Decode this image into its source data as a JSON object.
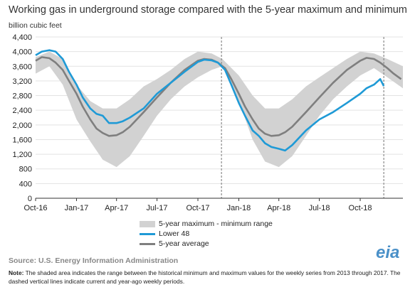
{
  "title": "Working gas in underground storage compared with the 5-year maximum and minimum",
  "units": "billion cubic feet",
  "source": "Source:  U.S. Energy Information Administration",
  "logo_text": "eia",
  "note_label": "Note:",
  "note_text": "The shaded area indicates the range between the historical minimum and maximum values for the weekly series from 2013 through 2017. The dashed vertical lines indicate current and year-ago weekly periods.",
  "colors": {
    "range": "#d2d2d2",
    "lower48": "#1f9ad6",
    "avg": "#7f7f7f"
  },
  "chart_data": {
    "type": "area",
    "ylim": [
      0,
      4400
    ],
    "yticks": [
      0,
      400,
      800,
      1200,
      1600,
      2000,
      2400,
      2800,
      3200,
      3600,
      4000,
      4400
    ],
    "ytick_labels": [
      "0",
      "400",
      "800",
      "1,200",
      "1,600",
      "2,000",
      "2,400",
      "2,800",
      "3,200",
      "3,600",
      "4,000",
      "4,400"
    ],
    "xlim": [
      "2016-10-01",
      "2019-01-05"
    ],
    "xticks": [
      "2016-10-01",
      "2017-01-01",
      "2017-04-01",
      "2017-07-01",
      "2017-10-01",
      "2018-01-01",
      "2018-04-01",
      "2018-07-01",
      "2018-10-01"
    ],
    "xtick_labels": [
      "Oct-16",
      "Jan-17",
      "Apr-17",
      "Jul-17",
      "Oct-17",
      "Jan-18",
      "Apr-18",
      "Jul-18",
      "Oct-18"
    ],
    "vlines": [
      "2017-11-23",
      "2018-11-23"
    ],
    "legend_position": "bottom",
    "series": [
      {
        "name": "5-year maximum - minimum range",
        "kind": "band",
        "x": [
          "2016-10-01",
          "2016-11-01",
          "2016-12-01",
          "2017-01-01",
          "2017-02-01",
          "2017-03-01",
          "2017-04-01",
          "2017-05-01",
          "2017-06-01",
          "2017-07-01",
          "2017-08-01",
          "2017-09-01",
          "2017-10-01",
          "2017-11-01",
          "2017-11-25",
          "2018-01-01",
          "2018-02-01",
          "2018-03-01",
          "2018-04-01",
          "2018-05-01",
          "2018-06-01",
          "2018-07-01",
          "2018-08-01",
          "2018-09-01",
          "2018-10-01",
          "2018-11-01",
          "2018-12-01",
          "2019-01-05"
        ],
        "upper": [
          3850,
          4000,
          3800,
          3100,
          2650,
          2450,
          2450,
          2700,
          3050,
          3250,
          3500,
          3800,
          4000,
          3950,
          3800,
          3350,
          2800,
          2450,
          2450,
          2700,
          3050,
          3300,
          3550,
          3800,
          4000,
          3950,
          3800,
          3600
        ],
        "lower": [
          3400,
          3600,
          3100,
          2150,
          1550,
          1050,
          850,
          1150,
          1700,
          2250,
          2700,
          3050,
          3300,
          3500,
          3600,
          2650,
          1600,
          1000,
          850,
          1150,
          1700,
          2250,
          2700,
          3050,
          3350,
          3550,
          3300,
          3000
        ]
      },
      {
        "name": "Lower 48",
        "kind": "line",
        "x": [
          "2016-10-01",
          "2016-10-15",
          "2016-11-01",
          "2016-11-15",
          "2016-12-01",
          "2016-12-15",
          "2017-01-01",
          "2017-01-15",
          "2017-02-01",
          "2017-02-15",
          "2017-03-01",
          "2017-03-15",
          "2017-04-01",
          "2017-04-15",
          "2017-05-01",
          "2017-06-01",
          "2017-07-01",
          "2017-08-01",
          "2017-09-01",
          "2017-10-01",
          "2017-10-15",
          "2017-11-01",
          "2017-11-15",
          "2017-12-01",
          "2017-12-15",
          "2018-01-01",
          "2018-01-15",
          "2018-02-01",
          "2018-02-15",
          "2018-03-01",
          "2018-03-15",
          "2018-04-01",
          "2018-04-15",
          "2018-05-01",
          "2018-06-01",
          "2018-07-01",
          "2018-08-01",
          "2018-09-01",
          "2018-10-01",
          "2018-10-15",
          "2018-11-01",
          "2018-11-15",
          "2018-11-23"
        ],
        "values": [
          3900,
          4000,
          4040,
          4000,
          3800,
          3450,
          3100,
          2750,
          2450,
          2300,
          2250,
          2050,
          2050,
          2100,
          2200,
          2450,
          2850,
          3150,
          3450,
          3720,
          3780,
          3760,
          3700,
          3500,
          3100,
          2600,
          2250,
          1850,
          1700,
          1500,
          1400,
          1350,
          1300,
          1450,
          1850,
          2150,
          2350,
          2600,
          2850,
          3000,
          3100,
          3250,
          3060
        ]
      },
      {
        "name": "5-year average",
        "kind": "line",
        "x": [
          "2016-10-01",
          "2016-10-15",
          "2016-11-01",
          "2016-11-15",
          "2016-12-01",
          "2016-12-15",
          "2017-01-01",
          "2017-01-15",
          "2017-02-01",
          "2017-02-15",
          "2017-03-01",
          "2017-03-15",
          "2017-04-01",
          "2017-04-15",
          "2017-05-01",
          "2017-06-01",
          "2017-07-01",
          "2017-08-01",
          "2017-09-01",
          "2017-10-01",
          "2017-10-15",
          "2017-11-01",
          "2017-11-15",
          "2017-12-01",
          "2017-12-15",
          "2018-01-01",
          "2018-01-15",
          "2018-02-01",
          "2018-02-15",
          "2018-03-01",
          "2018-03-15",
          "2018-04-01",
          "2018-04-15",
          "2018-05-01",
          "2018-06-01",
          "2018-07-01",
          "2018-08-01",
          "2018-09-01",
          "2018-10-01",
          "2018-10-15",
          "2018-11-01",
          "2018-11-15",
          "2018-12-01",
          "2018-12-15",
          "2019-01-01"
        ],
        "values": [
          3750,
          3850,
          3820,
          3700,
          3500,
          3200,
          2850,
          2500,
          2150,
          1900,
          1780,
          1700,
          1720,
          1800,
          1950,
          2350,
          2750,
          3150,
          3500,
          3750,
          3800,
          3780,
          3700,
          3550,
          3250,
          2850,
          2500,
          2150,
          1900,
          1760,
          1700,
          1720,
          1800,
          1950,
          2350,
          2750,
          3150,
          3500,
          3750,
          3830,
          3800,
          3700,
          3550,
          3400,
          3250
        ]
      }
    ]
  }
}
